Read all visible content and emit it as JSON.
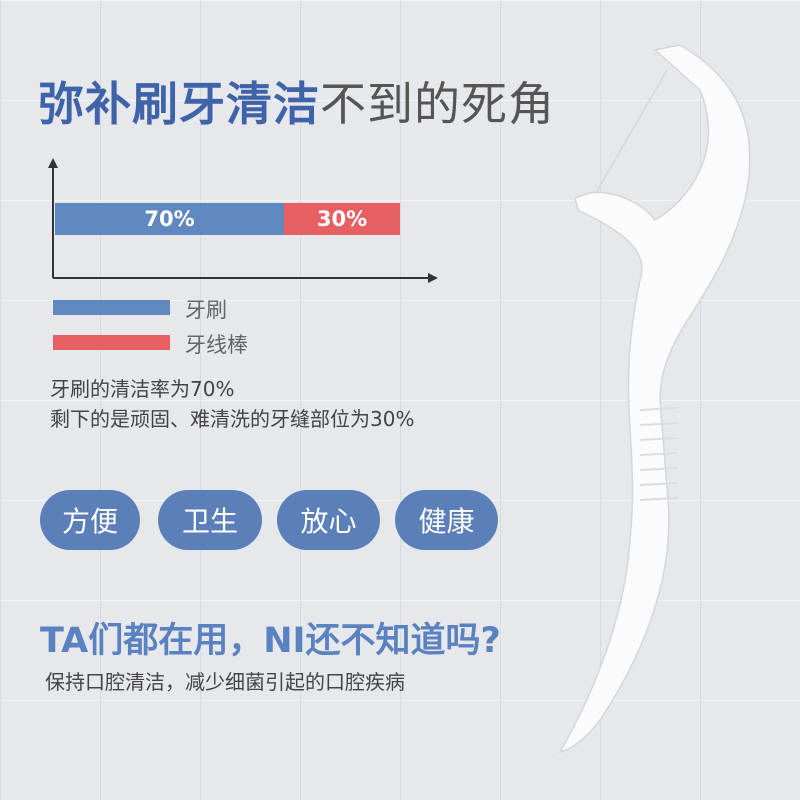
{
  "title": {
    "highlight": "弥补刷牙清洁",
    "rest": "不到的死角"
  },
  "chart_data": {
    "type": "bar",
    "stacked": true,
    "orientation": "horizontal",
    "series": [
      {
        "name": "牙刷",
        "values": [
          70
        ],
        "label": "70%",
        "color": "#6088c0"
      },
      {
        "name": "牙线棒",
        "values": [
          30
        ],
        "label": "30%",
        "color": "#e85f63"
      }
    ]
  },
  "legend": [
    "牙刷",
    "牙线棒"
  ],
  "description": [
    "牙刷的清洁率为70%",
    "剩下的是顽固、难清洗的牙缝部位为30%"
  ],
  "features": [
    "方便",
    "卫生",
    "放心",
    "健康"
  ],
  "headline": "TA们都在用，NI还不知道吗?",
  "subline": "保持口腔清洁，减少细菌引起的口腔疾病"
}
